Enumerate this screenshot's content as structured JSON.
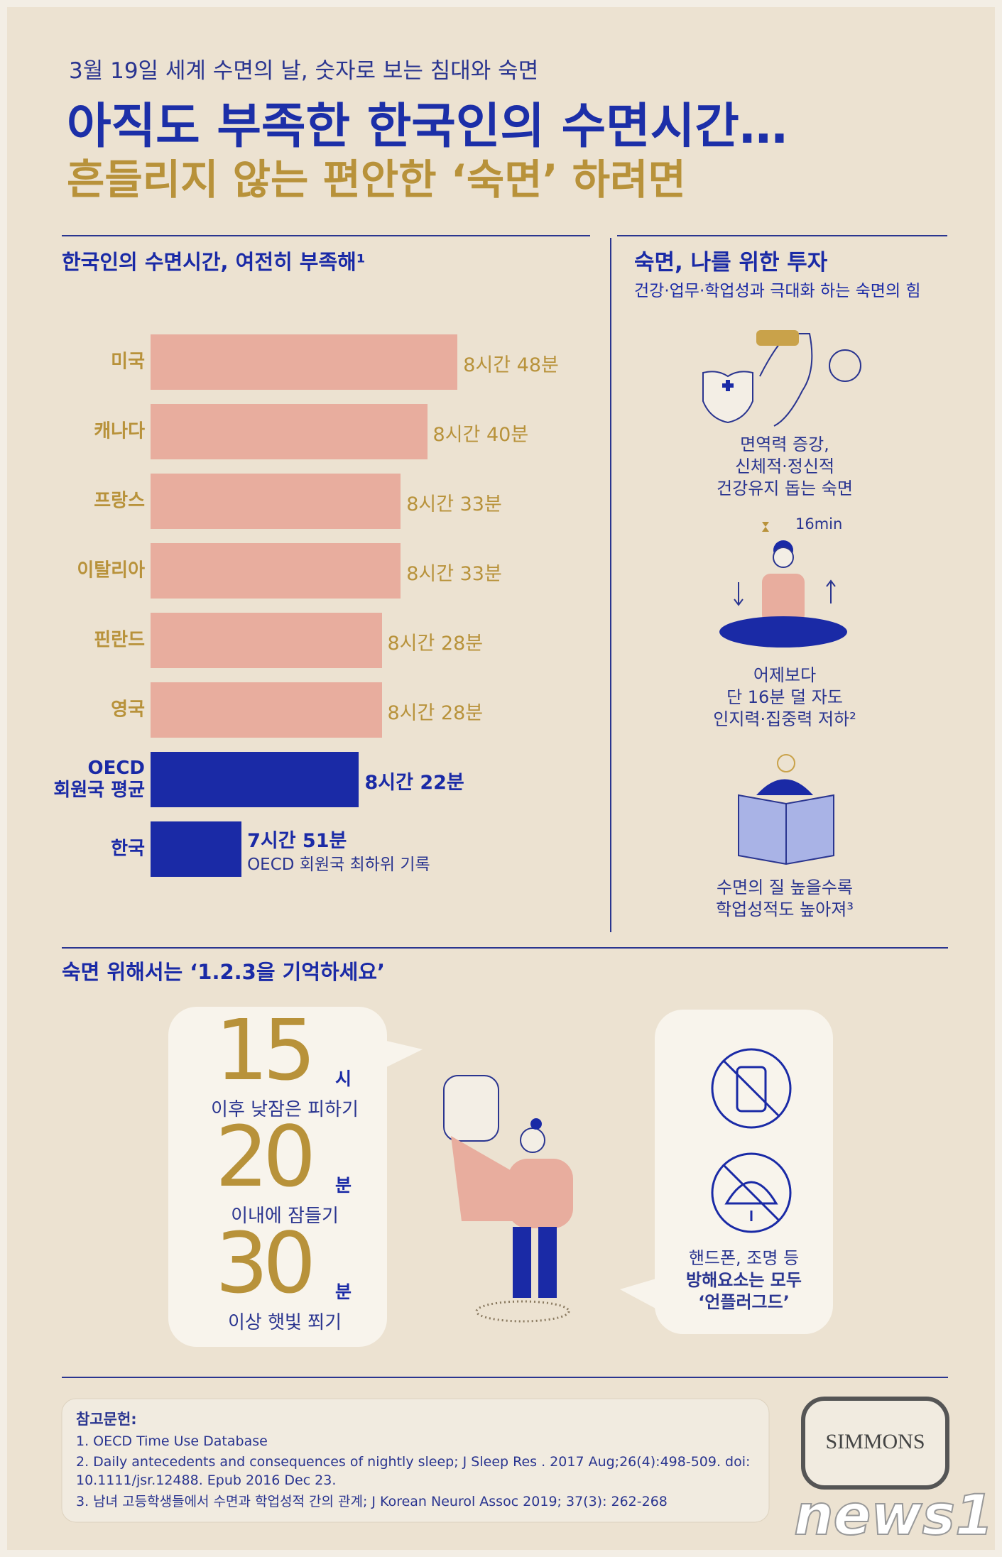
{
  "header": {
    "kicker": "3월 19일 세계 수면의 날, 숫자로 보는 침대와 숙면",
    "title": "아직도 부족한 한국인의 수면시간…",
    "subtitle": "흔들리지 않는 편안한 ‘숙면’ 하려면"
  },
  "chart_data": {
    "type": "bar",
    "orientation": "horizontal",
    "title": "한국인의 수면시간, 여전히 부족해¹",
    "categories": [
      "미국",
      "캐나다",
      "프랑스",
      "이탈리아",
      "핀란드",
      "영국",
      "OECD\n회원국 평균",
      "한국"
    ],
    "values": [
      528,
      520,
      513,
      513,
      508,
      508,
      502,
      471
    ],
    "value_labels": [
      "8시간 48분",
      "8시간 40분",
      "8시간 33분",
      "8시간 33분",
      "8시간 28분",
      "8시간 28분",
      "8시간 22분",
      "7시간 51분"
    ],
    "colors": [
      "#e8ad9e",
      "#e8ad9e",
      "#e8ad9e",
      "#e8ad9e",
      "#e8ad9e",
      "#e8ad9e",
      "#1a2aa6",
      "#1a2aa6"
    ],
    "label_colors": [
      "#b8923a",
      "#b8923a",
      "#b8923a",
      "#b8923a",
      "#b8923a",
      "#b8923a",
      "#1a2aa6",
      "#1a2aa6"
    ],
    "xlim": [
      447,
      563
    ],
    "annotation": "OECD 회원국 최하위 기록"
  },
  "benefits": {
    "title": "숙면, 나를 위한 투자",
    "subtitle": "건강·업무·학업성과 극대화 하는 숙면의 힘",
    "items": [
      {
        "lines": [
          "면역력 증강,",
          "신체적·정신적",
          "건강유지 돕는 숙면"
        ]
      },
      {
        "label": "16min",
        "lines": [
          "어제보다",
          "단 16분 덜 자도",
          "인지력·집중력 저하²"
        ]
      },
      {
        "lines": [
          "수면의 질 높을수록",
          "학업성적도 높아져³"
        ]
      }
    ]
  },
  "tips": {
    "title": "숙면 위해서는 ‘1.2.3을 기억하세요’",
    "items": [
      {
        "number": "15",
        "unit": "시",
        "text": "이후 낮잠은 피하기"
      },
      {
        "number": "20",
        "unit": "분",
        "text": "이내에 잠들기"
      },
      {
        "number": "30",
        "unit": "분",
        "text": "이상 햇빛 쬐기"
      }
    ],
    "unplug": [
      "핸드폰, 조명 등",
      "방해요소는 모두",
      "‘언플러그드’"
    ]
  },
  "references": {
    "title": "참고문헌:",
    "items": [
      "1. OECD Time Use Database",
      "2. Daily antecedents and consequences of nightly sleep; J Sleep Res . 2017 Aug;26(4):498-509. doi: 10.1111/jsr.12488. Epub 2016 Dec  23.",
      "3. 남녀 고등학생들에서 수면과 학업성적 간의 관계; J Korean Neurol Assoc 2019; 37(3): 262-268"
    ]
  },
  "logo": "SIMMONS",
  "watermark": "news1"
}
